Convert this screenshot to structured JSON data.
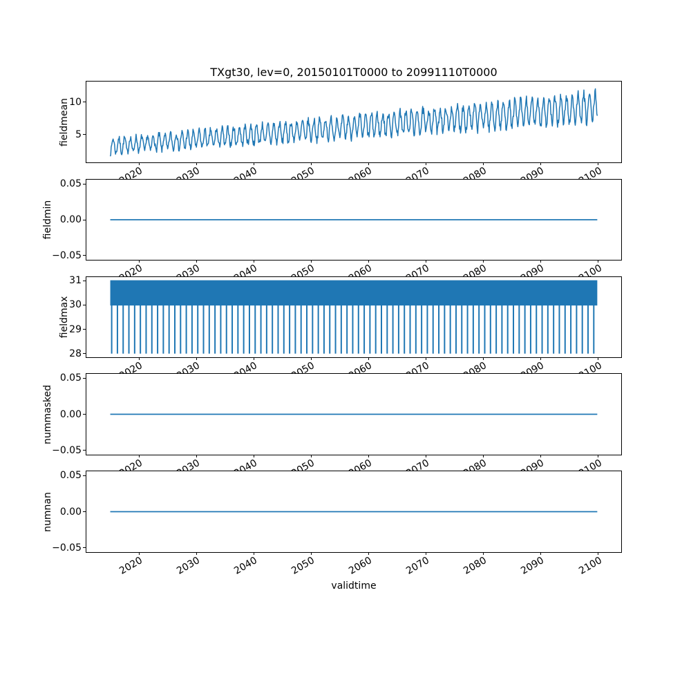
{
  "figure": {
    "title": "TXgt30, lev=0, 20150101T0000 to 20991110T0000",
    "background_color": "#ffffff",
    "line_color": "#1f77b4",
    "frame_color": "#000000",
    "text_color": "#000000"
  },
  "x_axis": {
    "label": "validtime",
    "xlim": [
      2010.84,
      2104.03
    ],
    "data_start": 2015.0,
    "data_end": 2099.86,
    "tick_values": [
      2020,
      2030,
      2040,
      2050,
      2060,
      2070,
      2080,
      2090,
      2100
    ],
    "tick_labels": [
      "2020",
      "2030",
      "2040",
      "2050",
      "2060",
      "2070",
      "2080",
      "2090",
      "2100"
    ],
    "tick_rotation_deg": 30
  },
  "chart_data": [
    {
      "panel": "fieldmean",
      "type": "line",
      "ylabel": "fieldmean",
      "ylim": [
        0.73,
        13.13
      ],
      "ytick_values": [
        10,
        5
      ],
      "ytick_labels": [
        "10",
        "5"
      ],
      "series": {
        "kind": "noisy_seasonal_trend",
        "description": "noisy annual-cycle line rising from about 3 in 2015 to about 9.5 in 2099",
        "trend_start": 3.2,
        "trend_end": 9.2,
        "seasonal_amplitude_start": 1.1,
        "seasonal_amplitude_end": 2.1,
        "noise_amplitude_start": 0.45,
        "noise_amplitude_end": 0.8,
        "points_per_year": 12,
        "seed": 7,
        "approx_min": 1.9,
        "approx_max": 12.5
      }
    },
    {
      "panel": "fieldmin",
      "type": "line",
      "ylabel": "fieldmin",
      "ylim": [
        -0.0562,
        0.0562
      ],
      "ytick_values": [
        0.05,
        0.0,
        -0.05
      ],
      "ytick_labels": [
        "0.05",
        "0.00",
        "−0.05"
      ],
      "series": {
        "kind": "constant",
        "value": 0.0
      }
    },
    {
      "panel": "fieldmax",
      "type": "line",
      "ylabel": "fieldmax",
      "ylim": [
        27.85,
        31.15
      ],
      "ytick_values": [
        31,
        30,
        29,
        28
      ],
      "ytick_labels": [
        "31",
        "30",
        "29",
        "28"
      ],
      "series": {
        "kind": "band_with_annual_dips",
        "description": "dense oscillation between 30 and 31 with one narrow dip to 28 every year",
        "band_low": 30,
        "band_high": 31,
        "dip_value": 28,
        "dip_period_years": 1,
        "first_dip_year": 2015.25,
        "n_dips": 85
      }
    },
    {
      "panel": "nummasked",
      "type": "line",
      "ylabel": "nummasked",
      "ylim": [
        -0.0562,
        0.0562
      ],
      "ytick_values": [
        0.05,
        0.0,
        -0.05
      ],
      "ytick_labels": [
        "0.05",
        "0.00",
        "−0.05"
      ],
      "series": {
        "kind": "constant",
        "value": 0.0
      }
    },
    {
      "panel": "numnan",
      "type": "line",
      "ylabel": "numnan",
      "ylim": [
        -0.0562,
        0.0562
      ],
      "ytick_values": [
        0.05,
        0.0,
        -0.05
      ],
      "ytick_labels": [
        "0.05",
        "0.00",
        "−0.05"
      ],
      "series": {
        "kind": "constant",
        "value": 0.0
      }
    }
  ]
}
